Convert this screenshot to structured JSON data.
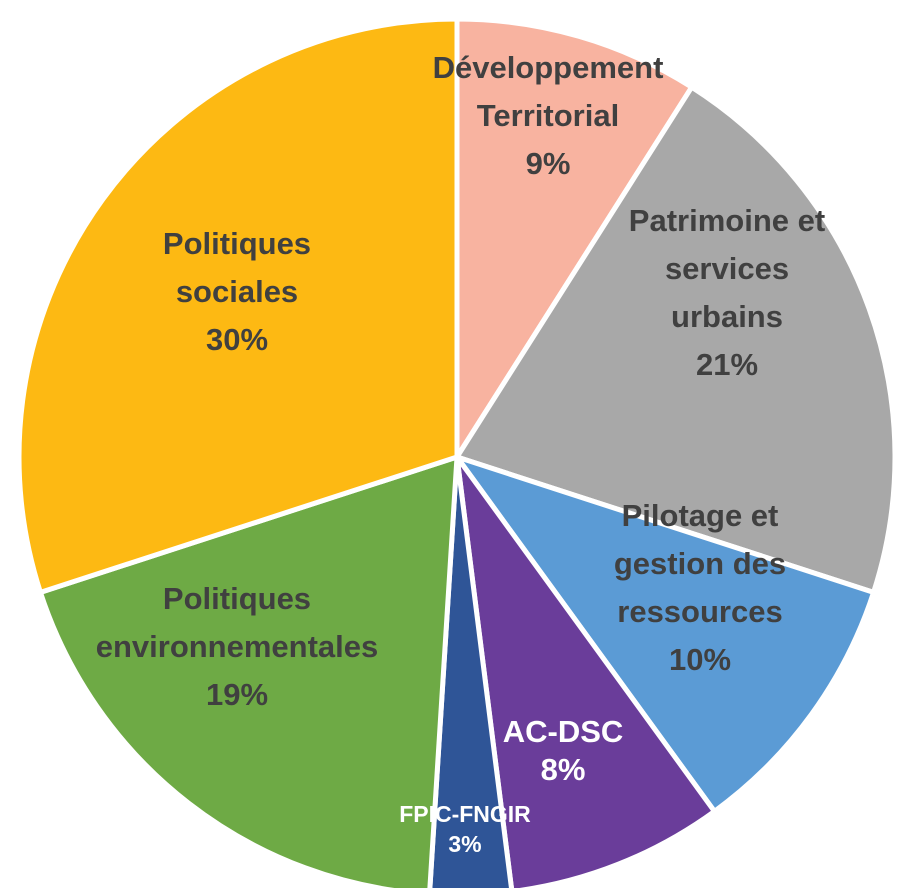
{
  "chart_data": {
    "type": "pie",
    "title": "",
    "slices": [
      {
        "label": "Développement Territorial",
        "label_lines": [
          "Développement",
          "Territorial"
        ],
        "pct_label": "9%",
        "value": 9,
        "color": "#F8B3A0",
        "text_color": "#404040"
      },
      {
        "label": "Patrimoine et services urbains",
        "label_lines": [
          "Patrimoine et",
          "services",
          "urbains"
        ],
        "pct_label": "21%",
        "value": 21,
        "color": "#A8A8A8",
        "text_color": "#404040"
      },
      {
        "label": "Pilotage et gestion des ressources",
        "label_lines": [
          "Pilotage et",
          "gestion des",
          "ressources"
        ],
        "pct_label": "10%",
        "value": 10,
        "color": "#5B9BD5",
        "text_color": "#404040"
      },
      {
        "label": "AC-DSC",
        "label_lines": [
          "AC-DSC"
        ],
        "pct_label": "8%",
        "value": 8,
        "color": "#6A3D9A",
        "text_color": "#FFFFFF"
      },
      {
        "label": "FPIC-FNGIR",
        "label_lines": [
          "FPIC-FNGIR"
        ],
        "pct_label": "3%",
        "value": 3,
        "color": "#2F5597",
        "text_color": "#FFFFFF"
      },
      {
        "label": "Politiques environnementales",
        "label_lines": [
          "Politiques",
          "environnementales"
        ],
        "pct_label": "19%",
        "value": 19,
        "color": "#6EAA45",
        "text_color": "#404040"
      },
      {
        "label": "Politiques sociales",
        "label_lines": [
          "Politiques",
          "sociales"
        ],
        "pct_label": "30%",
        "value": 30,
        "color": "#FDB913",
        "text_color": "#404040"
      }
    ]
  }
}
